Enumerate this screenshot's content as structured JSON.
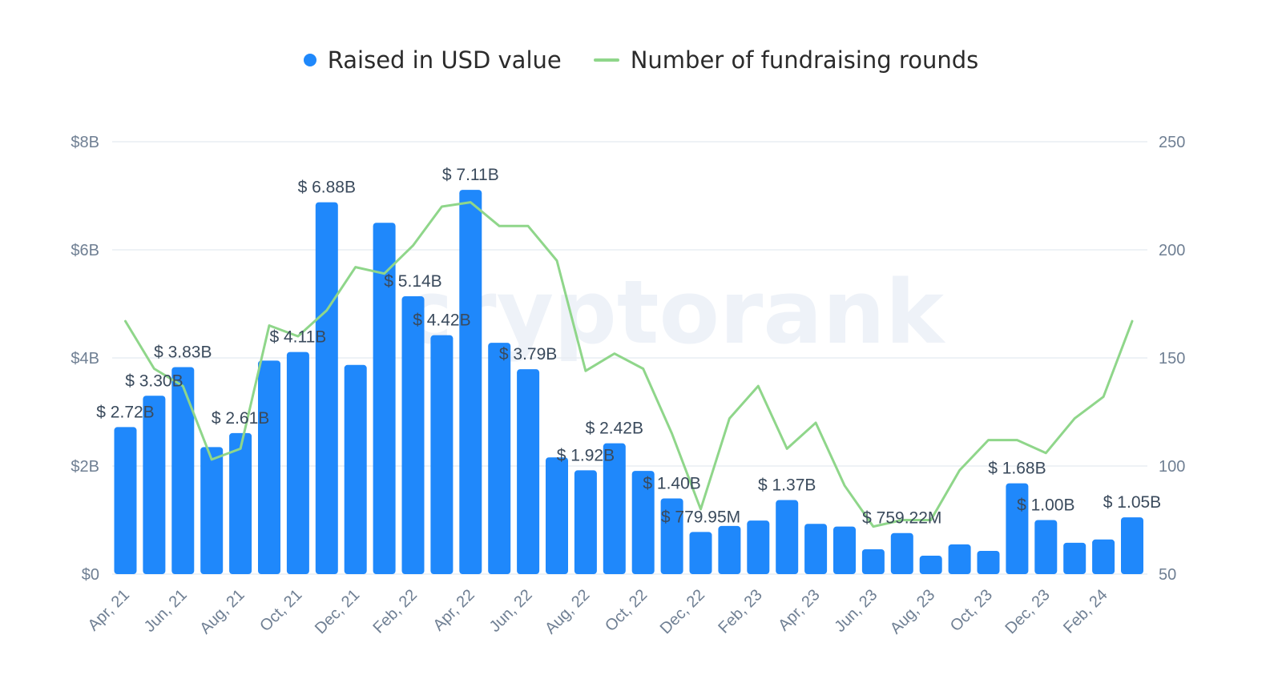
{
  "legend": {
    "bars_label": "Raised in USD value",
    "line_label": "Number of fundraising rounds"
  },
  "watermark": "cryptorank",
  "colors": {
    "bar": "#1f88fb",
    "line": "#8fd68a",
    "grid": "#e8edf3",
    "axis_text": "#6f7f93",
    "label_text": "#3a4a5c"
  },
  "chart_data": {
    "type": "bar",
    "x": [
      "Apr, 21",
      "May, 21",
      "Jun, 21",
      "Jul, 21",
      "Aug, 21",
      "Sep, 21",
      "Oct, 21",
      "Nov, 21",
      "Dec, 21",
      "Jan, 22",
      "Feb, 22",
      "Mar, 22",
      "Apr, 22",
      "May, 22",
      "Jun, 22",
      "Jul, 22",
      "Aug, 22",
      "Sep, 22",
      "Oct, 22",
      "Nov, 22",
      "Dec, 22",
      "Jan, 23",
      "Feb, 23",
      "Mar, 23",
      "Apr, 23",
      "May, 23",
      "Jun, 23",
      "Jul, 23",
      "Aug, 23",
      "Sep, 23",
      "Oct, 23",
      "Nov, 23",
      "Dec, 23",
      "Jan, 24",
      "Feb, 24",
      "Mar, 24"
    ],
    "x_tick_labels": [
      "Apr, 21",
      "Jun, 21",
      "Aug, 21",
      "Oct, 21",
      "Dec, 21",
      "Feb, 22",
      "Apr, 22",
      "Jun, 22",
      "Aug, 22",
      "Oct, 22",
      "Dec, 22",
      "Feb, 23",
      "Apr, 23",
      "Jun, 23",
      "Aug, 23",
      "Oct, 23",
      "Dec, 23",
      "Feb, 24"
    ],
    "series": [
      {
        "name": "Raised in USD value",
        "type": "bar",
        "axis": "left",
        "values": [
          2.72,
          3.3,
          3.83,
          2.35,
          2.61,
          3.95,
          4.11,
          6.88,
          3.87,
          6.5,
          5.14,
          4.42,
          7.11,
          4.28,
          3.79,
          2.16,
          1.92,
          2.42,
          1.91,
          1.4,
          0.78,
          0.89,
          0.99,
          1.37,
          0.93,
          0.88,
          0.46,
          0.76,
          0.34,
          0.55,
          0.43,
          1.68,
          1.0,
          0.58,
          0.64,
          1.05
        ]
      },
      {
        "name": "Number of fundraising rounds",
        "type": "line",
        "axis": "right",
        "values": [
          167,
          145,
          137,
          103,
          108,
          165,
          160,
          172,
          192,
          189,
          202,
          220,
          222,
          211,
          211,
          195,
          144,
          152,
          145,
          115,
          80,
          122,
          137,
          108,
          120,
          91,
          72,
          75,
          75,
          98,
          112,
          112,
          106,
          122,
          132,
          167
        ]
      }
    ],
    "data_labels": [
      {
        "index": 0,
        "text": "$ 2.72B"
      },
      {
        "index": 1,
        "text": "$ 3.30B"
      },
      {
        "index": 2,
        "text": "$ 3.83B"
      },
      {
        "index": 4,
        "text": "$ 2.61B"
      },
      {
        "index": 6,
        "text": "$ 4.11B"
      },
      {
        "index": 7,
        "text": "$ 6.88B"
      },
      {
        "index": 10,
        "text": "$ 5.14B"
      },
      {
        "index": 11,
        "text": "$ 4.42B"
      },
      {
        "index": 12,
        "text": "$ 7.11B"
      },
      {
        "index": 14,
        "text": "$ 3.79B"
      },
      {
        "index": 16,
        "text": "$ 1.92B"
      },
      {
        "index": 17,
        "text": "$ 2.42B"
      },
      {
        "index": 19,
        "text": "$ 1.40B"
      },
      {
        "index": 20,
        "text": "$ 779.95M"
      },
      {
        "index": 23,
        "text": "$ 1.37B"
      },
      {
        "index": 27,
        "text": "$ 759.22M"
      },
      {
        "index": 31,
        "text": "$ 1.68B"
      },
      {
        "index": 32,
        "text": "$ 1.00B"
      },
      {
        "index": 35,
        "text": "$ 1.05B"
      }
    ],
    "left_axis": {
      "min": 0,
      "max": 8,
      "ticks": [
        0,
        2,
        4,
        6,
        8
      ],
      "tick_labels": [
        "$0",
        "$2B",
        "$4B",
        "$6B",
        "$8B"
      ]
    },
    "right_axis": {
      "min": 50,
      "max": 250,
      "ticks": [
        50,
        100,
        150,
        200,
        250
      ],
      "tick_labels": [
        "50",
        "100",
        "150",
        "200",
        "250"
      ]
    },
    "grid": true,
    "legend_position": "top-center"
  }
}
